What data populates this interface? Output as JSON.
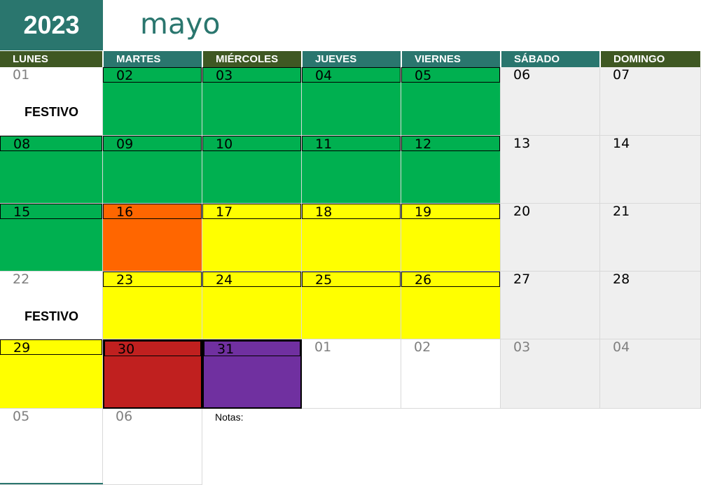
{
  "calendar": {
    "year": "2023",
    "month": "mayo",
    "notes_label": "Notas:",
    "weekdays": [
      "LUNES",
      "MARTES",
      "MIÉRCOLES",
      "JUEVES",
      "VIERNES",
      "SÁBADO",
      "DOMINGO"
    ],
    "weeks": [
      [
        {
          "day": "01",
          "fill": "#ffffff",
          "strip": "#ffffff",
          "boxed": false,
          "muted": true,
          "note": "FESTIVO"
        },
        {
          "day": "02",
          "fill": "#00b050",
          "strip": "#00b050",
          "boxed": true,
          "muted": false
        },
        {
          "day": "03",
          "fill": "#00b050",
          "strip": "#00b050",
          "boxed": true,
          "muted": false
        },
        {
          "day": "04",
          "fill": "#00b050",
          "strip": "#00b050",
          "boxed": true,
          "muted": false
        },
        {
          "day": "05",
          "fill": "#00b050",
          "strip": "#00b050",
          "boxed": true,
          "muted": false
        },
        {
          "day": "06",
          "fill": "#efefef",
          "strip": "#efefef",
          "boxed": false,
          "muted": false
        },
        {
          "day": "07",
          "fill": "#efefef",
          "strip": "#efefef",
          "boxed": false,
          "muted": false
        }
      ],
      [
        {
          "day": "08",
          "fill": "#00b050",
          "strip": "#00b050",
          "boxed": true,
          "muted": false
        },
        {
          "day": "09",
          "fill": "#00b050",
          "strip": "#00b050",
          "boxed": true,
          "muted": false
        },
        {
          "day": "10",
          "fill": "#00b050",
          "strip": "#00b050",
          "boxed": true,
          "muted": false
        },
        {
          "day": "11",
          "fill": "#00b050",
          "strip": "#00b050",
          "boxed": true,
          "muted": false
        },
        {
          "day": "12",
          "fill": "#00b050",
          "strip": "#00b050",
          "boxed": true,
          "muted": false
        },
        {
          "day": "13",
          "fill": "#efefef",
          "strip": "#efefef",
          "boxed": false,
          "muted": false
        },
        {
          "day": "14",
          "fill": "#efefef",
          "strip": "#efefef",
          "boxed": false,
          "muted": false
        }
      ],
      [
        {
          "day": "15",
          "fill": "#00b050",
          "strip": "#00b050",
          "boxed": true,
          "muted": false
        },
        {
          "day": "16",
          "fill": "#ff6600",
          "strip": "#ff6600",
          "boxed": true,
          "muted": false
        },
        {
          "day": "17",
          "fill": "#ffff00",
          "strip": "#ffff00",
          "boxed": true,
          "muted": false
        },
        {
          "day": "18",
          "fill": "#ffff00",
          "strip": "#ffff00",
          "boxed": true,
          "muted": false
        },
        {
          "day": "19",
          "fill": "#ffff00",
          "strip": "#ffff00",
          "boxed": true,
          "muted": false
        },
        {
          "day": "20",
          "fill": "#efefef",
          "strip": "#efefef",
          "boxed": false,
          "muted": false
        },
        {
          "day": "21",
          "fill": "#efefef",
          "strip": "#efefef",
          "boxed": false,
          "muted": false
        }
      ],
      [
        {
          "day": "22",
          "fill": "#ffffff",
          "strip": "#ffffff",
          "boxed": false,
          "muted": true,
          "note": "FESTIVO"
        },
        {
          "day": "23",
          "fill": "#ffff00",
          "strip": "#ffff00",
          "boxed": true,
          "muted": false
        },
        {
          "day": "24",
          "fill": "#ffff00",
          "strip": "#ffff00",
          "boxed": true,
          "muted": false
        },
        {
          "day": "25",
          "fill": "#ffff00",
          "strip": "#ffff00",
          "boxed": true,
          "muted": false
        },
        {
          "day": "26",
          "fill": "#ffff00",
          "strip": "#ffff00",
          "boxed": true,
          "muted": false
        },
        {
          "day": "27",
          "fill": "#efefef",
          "strip": "#efefef",
          "boxed": false,
          "muted": false
        },
        {
          "day": "28",
          "fill": "#efefef",
          "strip": "#efefef",
          "boxed": false,
          "muted": false
        }
      ],
      [
        {
          "day": "29",
          "fill": "#ffff00",
          "strip": "#ffff00",
          "boxed": true,
          "muted": false
        },
        {
          "day": "30",
          "fill": "#c0201f",
          "strip": "#c0201f",
          "boxed": true,
          "muted": false
        },
        {
          "day": "31",
          "fill": "#7030a0",
          "strip": "#7030a0",
          "boxed": true,
          "muted": false
        },
        {
          "day": "01",
          "fill": "#ffffff",
          "strip": "#ffffff",
          "boxed": false,
          "muted": true
        },
        {
          "day": "02",
          "fill": "#ffffff",
          "strip": "#ffffff",
          "boxed": false,
          "muted": true
        },
        {
          "day": "03",
          "fill": "#efefef",
          "strip": "#efefef",
          "boxed": false,
          "muted": true
        },
        {
          "day": "04",
          "fill": "#efefef",
          "strip": "#efefef",
          "boxed": false,
          "muted": true
        }
      ],
      [
        {
          "day": "05",
          "fill": "#ffffff",
          "strip": "#ffffff",
          "boxed": false,
          "muted": true
        },
        {
          "day": "06",
          "fill": "#ffffff",
          "strip": "#ffffff",
          "boxed": false,
          "muted": true
        }
      ]
    ]
  },
  "colors": {
    "accent_teal": "#2a766e",
    "header_olive": "#3f5823",
    "muted_text": "#7f7f7f",
    "weekend_gray": "#efefef"
  }
}
